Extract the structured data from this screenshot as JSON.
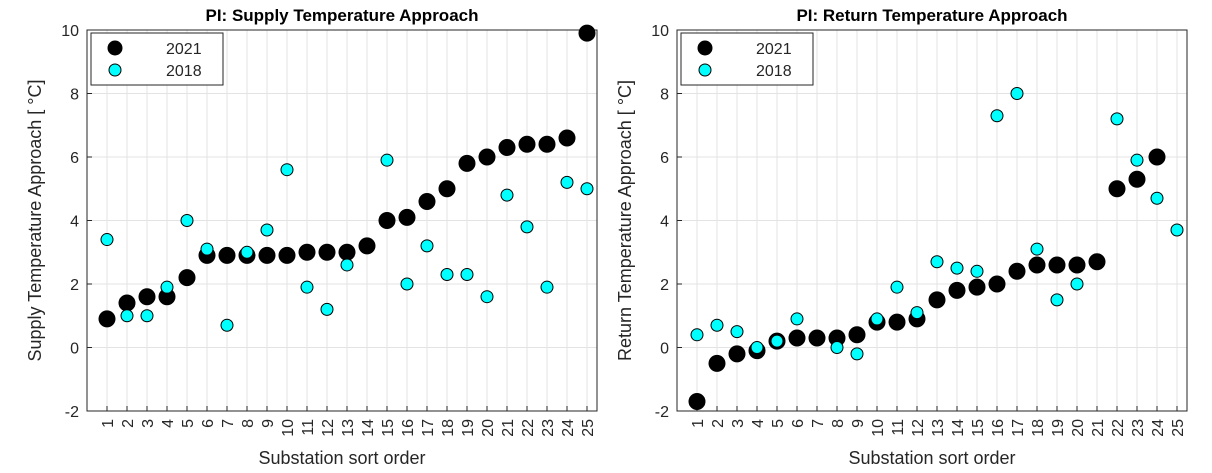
{
  "chart_data": [
    {
      "type": "scatter",
      "title": "PI: Supply Temperature Approach",
      "x_label": "Substation sort order",
      "y_label": "Supply Temperature Approach [ °C]",
      "x": [
        1,
        2,
        3,
        4,
        5,
        6,
        7,
        8,
        9,
        10,
        11,
        12,
        13,
        14,
        15,
        16,
        17,
        18,
        19,
        20,
        21,
        22,
        23,
        24,
        25
      ],
      "series": [
        {
          "name": "2021",
          "color": "#000000",
          "values": [
            0.9,
            1.4,
            1.6,
            1.6,
            2.2,
            2.9,
            2.9,
            2.9,
            2.9,
            2.9,
            3.0,
            3.0,
            3.0,
            3.2,
            4.0,
            4.1,
            4.6,
            5.0,
            5.8,
            6.0,
            6.3,
            6.4,
            6.4,
            6.6,
            9.9
          ]
        },
        {
          "name": "2018",
          "color": "#00ffff",
          "values": [
            3.4,
            1.0,
            1.0,
            1.9,
            4.0,
            3.1,
            0.7,
            3.0,
            3.7,
            5.6,
            1.9,
            1.2,
            2.6,
            null,
            5.9,
            2.0,
            3.2,
            2.3,
            2.3,
            1.6,
            4.8,
            3.8,
            1.9,
            5.2,
            5.0
          ]
        }
      ],
      "xlim": [
        0,
        25.5
      ],
      "ylim": [
        -2,
        10
      ],
      "xticks": [
        1,
        2,
        3,
        4,
        5,
        6,
        7,
        8,
        9,
        10,
        11,
        12,
        13,
        14,
        15,
        16,
        17,
        18,
        19,
        20,
        21,
        22,
        23,
        24,
        25
      ],
      "yticks": [
        -2,
        0,
        2,
        4,
        6,
        8,
        10
      ],
      "grid": true,
      "legend": "upper left"
    },
    {
      "type": "scatter",
      "title": "PI: Return Temperature Approach",
      "x_label": "Substation sort order",
      "y_label": "Return Temperature Approach [ °C]",
      "x": [
        1,
        2,
        3,
        4,
        5,
        6,
        7,
        8,
        9,
        10,
        11,
        12,
        13,
        14,
        15,
        16,
        17,
        18,
        19,
        20,
        21,
        22,
        23,
        24,
        25
      ],
      "series": [
        {
          "name": "2021",
          "color": "#000000",
          "values": [
            -1.7,
            -0.5,
            -0.2,
            -0.1,
            0.2,
            0.3,
            0.3,
            0.3,
            0.4,
            0.8,
            0.8,
            0.9,
            1.5,
            1.8,
            1.9,
            2.0,
            2.4,
            2.6,
            2.6,
            2.6,
            2.7,
            5.0,
            5.3,
            6.0,
            null
          ]
        },
        {
          "name": "2018",
          "color": "#00ffff",
          "values": [
            0.4,
            0.7,
            0.5,
            0.0,
            0.2,
            0.9,
            null,
            0.0,
            -0.2,
            0.9,
            1.9,
            1.1,
            2.7,
            2.5,
            2.4,
            7.3,
            8.0,
            3.1,
            1.5,
            2.0,
            null,
            7.2,
            5.9,
            4.7,
            3.7
          ]
        }
      ],
      "xlim": [
        0,
        25.5
      ],
      "ylim": [
        -2,
        10
      ],
      "xticks": [
        1,
        2,
        3,
        4,
        5,
        6,
        7,
        8,
        9,
        10,
        11,
        12,
        13,
        14,
        15,
        16,
        17,
        18,
        19,
        20,
        21,
        22,
        23,
        24,
        25
      ],
      "yticks": [
        -2,
        0,
        2,
        4,
        6,
        8,
        10
      ],
      "grid": true,
      "legend": "upper left"
    }
  ]
}
